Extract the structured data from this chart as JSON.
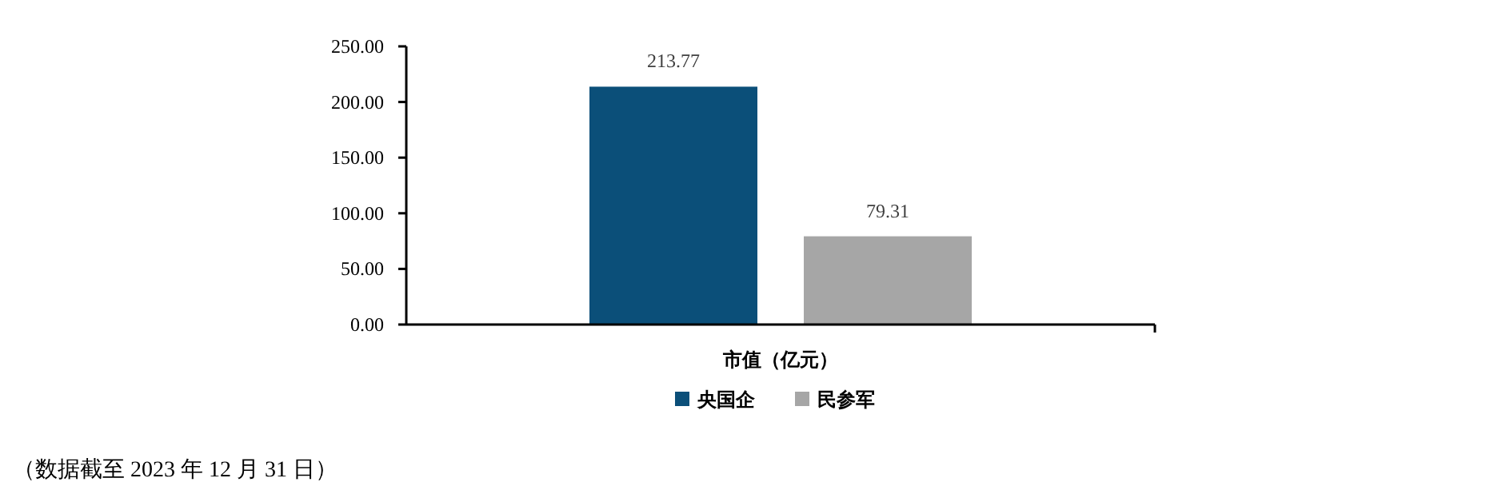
{
  "chart_data": {
    "type": "bar",
    "categories": [
      "市值（亿元）"
    ],
    "series": [
      {
        "name": "央国企",
        "color": "#0b4f79",
        "values": [
          213.77
        ]
      },
      {
        "name": "民参军",
        "color": "#a6a6a6",
        "values": [
          79.31
        ]
      }
    ],
    "ylim": [
      0,
      250
    ],
    "yticks": [
      {
        "value": 0,
        "label": "0.00"
      },
      {
        "value": 50,
        "label": "50.00"
      },
      {
        "value": 100,
        "label": "100.00"
      },
      {
        "value": 150,
        "label": "150.00"
      },
      {
        "value": 200,
        "label": "200.00"
      },
      {
        "value": 250,
        "label": "250.00"
      }
    ],
    "data_labels": true,
    "grid": false,
    "legend": "bottom",
    "annotations": [
      "（数据截至 2023 年 12 月 31 日）"
    ]
  }
}
